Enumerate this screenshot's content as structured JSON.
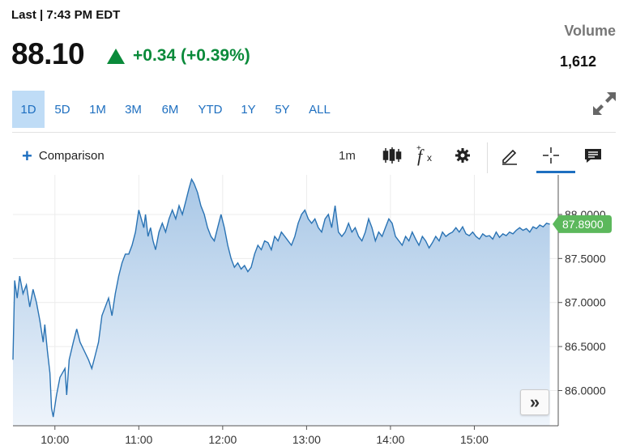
{
  "quote": {
    "last_label": "Last | 7:43 PM EDT",
    "price": "88.10",
    "change": "+0.34 (+0.39%)",
    "change_direction": "up",
    "up_color": "#0a8a3a",
    "volume_label": "Volume",
    "volume_value": "1,612"
  },
  "ranges": [
    {
      "label": "1D",
      "active": true
    },
    {
      "label": "5D",
      "active": false
    },
    {
      "label": "1M",
      "active": false
    },
    {
      "label": "3M",
      "active": false
    },
    {
      "label": "6M",
      "active": false
    },
    {
      "label": "YTD",
      "active": false
    },
    {
      "label": "1Y",
      "active": false
    },
    {
      "label": "5Y",
      "active": false
    },
    {
      "label": "ALL",
      "active": false
    }
  ],
  "toolbar": {
    "comparison_label": "Comparison",
    "interval": "1m",
    "icons": [
      "candlestick-icon",
      "function-icon",
      "gear-icon",
      "pencil-icon",
      "crosshair-icon",
      "comment-icon"
    ]
  },
  "chart_data": {
    "type": "area",
    "xlabel": "",
    "ylabel": "",
    "x_ticks": [
      "10:00",
      "11:00",
      "12:00",
      "13:00",
      "14:00",
      "15:00"
    ],
    "y_ticks": [
      "88.0000",
      "87.5000",
      "87.0000",
      "86.5000",
      "86.0000"
    ],
    "ylim": [
      85.6,
      88.45
    ],
    "xlim_minutes": [
      9.5,
      16.0
    ],
    "last_price_label": "87.8900",
    "last_price_color": "#5cb85c",
    "line_color": "#2a73b4",
    "fill_top": "#a8c7e6",
    "fill_bottom": "#eef4fb",
    "series": [
      {
        "points": [
          [
            9.5,
            86.35
          ],
          [
            9.52,
            87.25
          ],
          [
            9.55,
            87.05
          ],
          [
            9.58,
            87.3
          ],
          [
            9.62,
            87.1
          ],
          [
            9.66,
            87.2
          ],
          [
            9.7,
            86.95
          ],
          [
            9.74,
            87.15
          ],
          [
            9.78,
            87.0
          ],
          [
            9.82,
            86.8
          ],
          [
            9.86,
            86.55
          ],
          [
            9.88,
            86.75
          ],
          [
            9.91,
            86.45
          ],
          [
            9.94,
            86.2
          ],
          [
            9.96,
            85.8
          ],
          [
            9.98,
            85.7
          ],
          [
            10.02,
            85.95
          ],
          [
            10.06,
            86.15
          ],
          [
            10.09,
            86.2
          ],
          [
            10.12,
            86.25
          ],
          [
            10.14,
            85.95
          ],
          [
            10.17,
            86.35
          ],
          [
            10.22,
            86.55
          ],
          [
            10.26,
            86.7
          ],
          [
            10.3,
            86.55
          ],
          [
            10.35,
            86.45
          ],
          [
            10.4,
            86.35
          ],
          [
            10.44,
            86.25
          ],
          [
            10.48,
            86.4
          ],
          [
            10.52,
            86.55
          ],
          [
            10.56,
            86.85
          ],
          [
            10.6,
            86.95
          ],
          [
            10.64,
            87.05
          ],
          [
            10.68,
            86.85
          ],
          [
            10.72,
            87.1
          ],
          [
            10.76,
            87.3
          ],
          [
            10.8,
            87.45
          ],
          [
            10.84,
            87.55
          ],
          [
            10.88,
            87.55
          ],
          [
            10.92,
            87.65
          ],
          [
            10.96,
            87.8
          ],
          [
            11.0,
            88.05
          ],
          [
            11.03,
            87.95
          ],
          [
            11.06,
            87.85
          ],
          [
            11.08,
            88.0
          ],
          [
            11.11,
            87.75
          ],
          [
            11.14,
            87.85
          ],
          [
            11.17,
            87.7
          ],
          [
            11.2,
            87.6
          ],
          [
            11.24,
            87.8
          ],
          [
            11.28,
            87.9
          ],
          [
            11.32,
            87.8
          ],
          [
            11.36,
            87.95
          ],
          [
            11.4,
            88.05
          ],
          [
            11.44,
            87.95
          ],
          [
            11.48,
            88.1
          ],
          [
            11.52,
            88.0
          ],
          [
            11.56,
            88.15
          ],
          [
            11.6,
            88.3
          ],
          [
            11.63,
            88.4
          ],
          [
            11.66,
            88.35
          ],
          [
            11.7,
            88.25
          ],
          [
            11.74,
            88.1
          ],
          [
            11.78,
            88.0
          ],
          [
            11.82,
            87.85
          ],
          [
            11.86,
            87.75
          ],
          [
            11.9,
            87.7
          ],
          [
            11.94,
            87.85
          ],
          [
            11.98,
            88.0
          ],
          [
            12.02,
            87.85
          ],
          [
            12.06,
            87.65
          ],
          [
            12.1,
            87.5
          ],
          [
            12.14,
            87.4
          ],
          [
            12.18,
            87.45
          ],
          [
            12.22,
            87.38
          ],
          [
            12.26,
            87.42
          ],
          [
            12.3,
            87.35
          ],
          [
            12.34,
            87.4
          ],
          [
            12.38,
            87.55
          ],
          [
            12.42,
            87.65
          ],
          [
            12.46,
            87.6
          ],
          [
            12.5,
            87.7
          ],
          [
            12.54,
            87.68
          ],
          [
            12.58,
            87.6
          ],
          [
            12.62,
            87.75
          ],
          [
            12.66,
            87.7
          ],
          [
            12.7,
            87.8
          ],
          [
            12.74,
            87.75
          ],
          [
            12.78,
            87.7
          ],
          [
            12.82,
            87.65
          ],
          [
            12.86,
            87.75
          ],
          [
            12.9,
            87.9
          ],
          [
            12.94,
            88.0
          ],
          [
            12.98,
            88.05
          ],
          [
            13.02,
            87.95
          ],
          [
            13.06,
            87.9
          ],
          [
            13.1,
            87.95
          ],
          [
            13.14,
            87.85
          ],
          [
            13.18,
            87.8
          ],
          [
            13.22,
            87.95
          ],
          [
            13.26,
            88.0
          ],
          [
            13.3,
            87.85
          ],
          [
            13.34,
            88.1
          ],
          [
            13.38,
            87.8
          ],
          [
            13.42,
            87.75
          ],
          [
            13.46,
            87.8
          ],
          [
            13.5,
            87.9
          ],
          [
            13.54,
            87.8
          ],
          [
            13.58,
            87.85
          ],
          [
            13.62,
            87.75
          ],
          [
            13.66,
            87.7
          ],
          [
            13.7,
            87.8
          ],
          [
            13.74,
            87.95
          ],
          [
            13.78,
            87.85
          ],
          [
            13.82,
            87.7
          ],
          [
            13.86,
            87.8
          ],
          [
            13.9,
            87.75
          ],
          [
            13.94,
            87.85
          ],
          [
            13.98,
            87.95
          ],
          [
            14.02,
            87.9
          ],
          [
            14.06,
            87.75
          ],
          [
            14.1,
            87.7
          ],
          [
            14.14,
            87.65
          ],
          [
            14.18,
            87.75
          ],
          [
            14.22,
            87.7
          ],
          [
            14.26,
            87.8
          ],
          [
            14.3,
            87.72
          ],
          [
            14.34,
            87.65
          ],
          [
            14.38,
            87.75
          ],
          [
            14.42,
            87.7
          ],
          [
            14.46,
            87.62
          ],
          [
            14.5,
            87.68
          ],
          [
            14.54,
            87.75
          ],
          [
            14.58,
            87.7
          ],
          [
            14.62,
            87.8
          ],
          [
            14.66,
            87.75
          ],
          [
            14.7,
            87.78
          ],
          [
            14.74,
            87.8
          ],
          [
            14.78,
            87.85
          ],
          [
            14.82,
            87.8
          ],
          [
            14.86,
            87.86
          ],
          [
            14.9,
            87.78
          ],
          [
            14.94,
            87.76
          ],
          [
            14.98,
            87.8
          ],
          [
            15.02,
            87.75
          ],
          [
            15.06,
            87.72
          ],
          [
            15.1,
            87.78
          ],
          [
            15.14,
            87.75
          ],
          [
            15.18,
            87.76
          ],
          [
            15.22,
            87.72
          ],
          [
            15.26,
            87.8
          ],
          [
            15.3,
            87.74
          ],
          [
            15.34,
            87.78
          ],
          [
            15.38,
            87.76
          ],
          [
            15.42,
            87.8
          ],
          [
            15.46,
            87.78
          ],
          [
            15.5,
            87.82
          ],
          [
            15.54,
            87.85
          ],
          [
            15.58,
            87.82
          ],
          [
            15.62,
            87.84
          ],
          [
            15.66,
            87.8
          ],
          [
            15.7,
            87.86
          ],
          [
            15.74,
            87.84
          ],
          [
            15.78,
            87.88
          ],
          [
            15.82,
            87.86
          ],
          [
            15.86,
            87.9
          ],
          [
            15.9,
            87.89
          ]
        ]
      }
    ]
  }
}
